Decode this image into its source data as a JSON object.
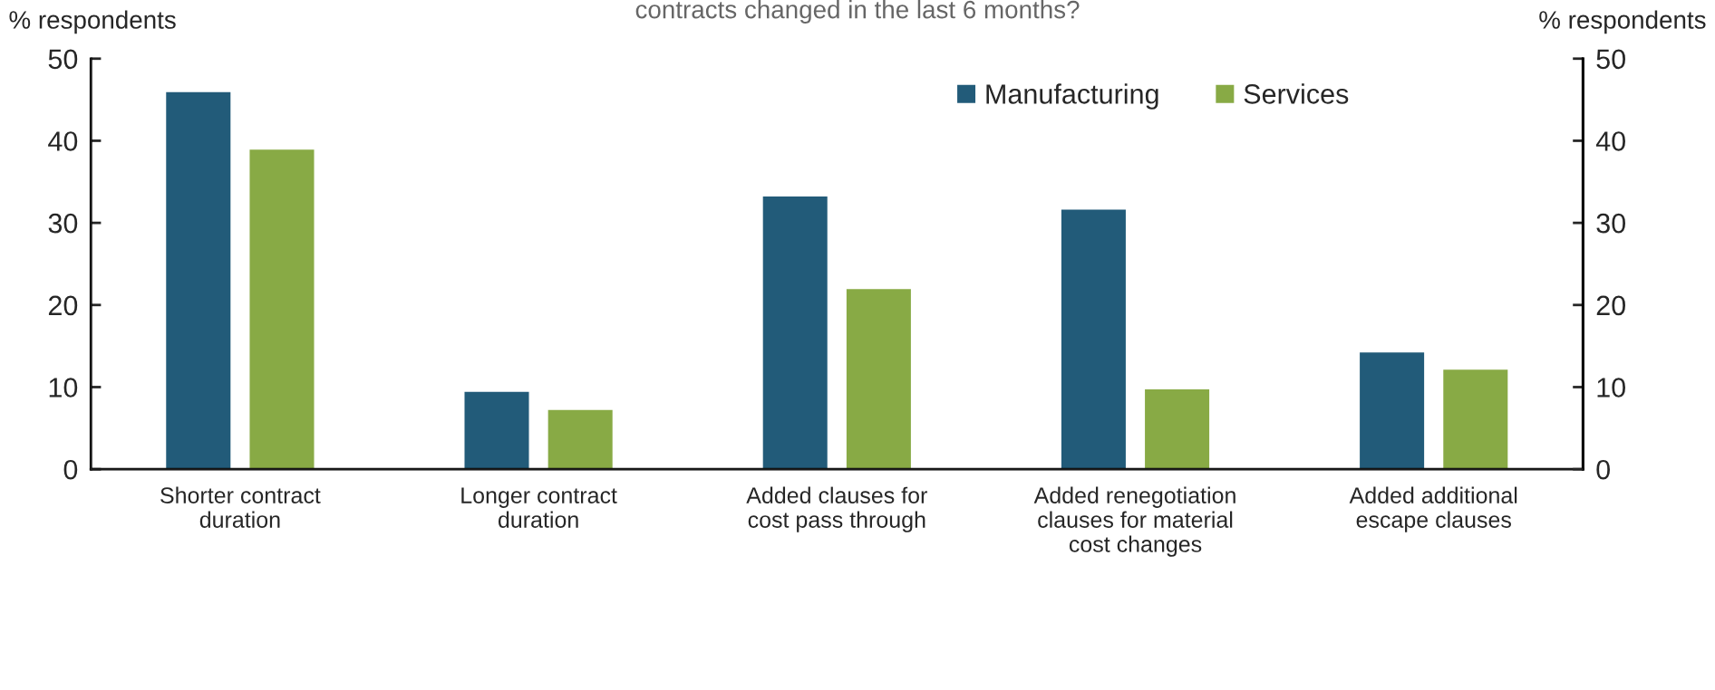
{
  "chart_data": {
    "type": "bar",
    "title": "contracts changed in the last 6 months?",
    "ylabel": "% respondents",
    "y2label": "% respondents",
    "categories": [
      "Shorter contract\nduration",
      "Longer contract\nduration",
      "Added clauses for\ncost pass through",
      "Added renegotiation\nclauses for material\ncost changes",
      "Added additional\nescape clauses"
    ],
    "series": [
      {
        "name": "Manufacturing",
        "color": "#225b79",
        "values": [
          46.0,
          9.5,
          33.3,
          31.7,
          14.3
        ]
      },
      {
        "name": "Services",
        "color": "#88aa45",
        "values": [
          39.0,
          7.3,
          22.0,
          9.8,
          12.2
        ]
      }
    ],
    "ylim": [
      0,
      50
    ],
    "yticks": [
      0,
      10,
      20,
      30,
      40,
      50
    ],
    "y2lim": [
      0,
      50
    ],
    "y2ticks": [
      0,
      10,
      20,
      30,
      40,
      50
    ],
    "grid": false,
    "legend": "top right"
  }
}
